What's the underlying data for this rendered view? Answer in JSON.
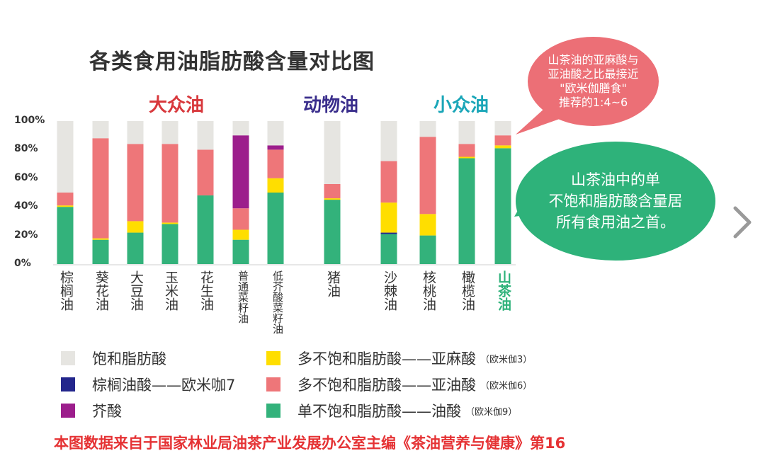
{
  "chart_data": {
    "type": "bar",
    "stacked": true,
    "title": "各类食用油脂肪酸含量对比图",
    "groups": [
      {
        "name": "大众油",
        "color": "#d8383c",
        "members": [
          "棕榈油",
          "葵花油",
          "大豆油",
          "玉米油",
          "花生油",
          "普通菜籽油",
          "低芥酸菜籽油"
        ]
      },
      {
        "name": "动物油",
        "color": "#3a2e8c",
        "members": [
          "猪油"
        ]
      },
      {
        "name": "小众油",
        "color": "#1aa6b8",
        "members": [
          "沙棘油",
          "核桃油",
          "橄榄油",
          "山茶油"
        ]
      }
    ],
    "categories": [
      "棕榈油",
      "葵花油",
      "大豆油",
      "玉米油",
      "花生油",
      "普通菜籽油",
      "低芥酸菜籽油",
      "猪油",
      "沙棘油",
      "核桃油",
      "橄榄油",
      "山茶油"
    ],
    "ylim": [
      0,
      100
    ],
    "yticks": [
      "0%",
      "20%",
      "40%",
      "60%",
      "80%",
      "100%"
    ],
    "series": [
      {
        "name": "单不饱和脂肪酸——油酸",
        "note": "（欧米伽9）",
        "color": "#33b27b",
        "values": [
          40,
          17,
          22,
          28,
          48,
          17,
          50,
          45,
          21,
          20,
          74,
          81
        ]
      },
      {
        "name": "棕榈油酸——欧米咖7",
        "note": "",
        "color": "#23268c",
        "values": [
          0,
          0,
          0,
          0,
          0,
          0,
          0,
          0,
          1,
          0,
          0,
          0
        ]
      },
      {
        "name": "多不饱和脂肪酸——亚麻酸",
        "note": "（欧米伽3）",
        "color": "#ffde00",
        "values": [
          1,
          1,
          8,
          1,
          0,
          7,
          10,
          1,
          21,
          15,
          1,
          2
        ]
      },
      {
        "name": "多不饱和脂肪酸——亚油酸",
        "note": "（欧米伽6）",
        "color": "#ee7679",
        "values": [
          9,
          70,
          54,
          55,
          32,
          15,
          20,
          10,
          29,
          54,
          9,
          7
        ]
      },
      {
        "name": "芥酸",
        "note": "",
        "color": "#9c1e8c",
        "values": [
          0,
          0,
          0,
          0,
          0,
          51,
          3,
          0,
          0,
          0,
          0,
          0
        ]
      },
      {
        "name": "饱和脂肪酸",
        "note": "",
        "color": "#e6e5e1",
        "values": [
          50,
          12,
          16,
          16,
          20,
          10,
          17,
          44,
          28,
          11,
          16,
          10
        ]
      }
    ],
    "legend_order": [
      "饱和脂肪酸",
      "多不饱和脂肪酸——亚麻酸",
      "棕榈油酸——欧米咖7",
      "多不饱和脂肪酸——亚油酸",
      "芥酸",
      "单不饱和脂肪酸——油酸"
    ]
  },
  "callouts": {
    "red": "山茶油的亚麻酸与\n亚油酸之比最接近\n\"欧米伽膳食\"\n推荐的1:4~6",
    "green": "山茶油中的单\n不饱和脂肪酸含量居\n所有食用油之首。"
  },
  "source_note": "本图数据来自于国家林业局油茶产业发展办公室主编《茶油营养与健康》第16"
}
